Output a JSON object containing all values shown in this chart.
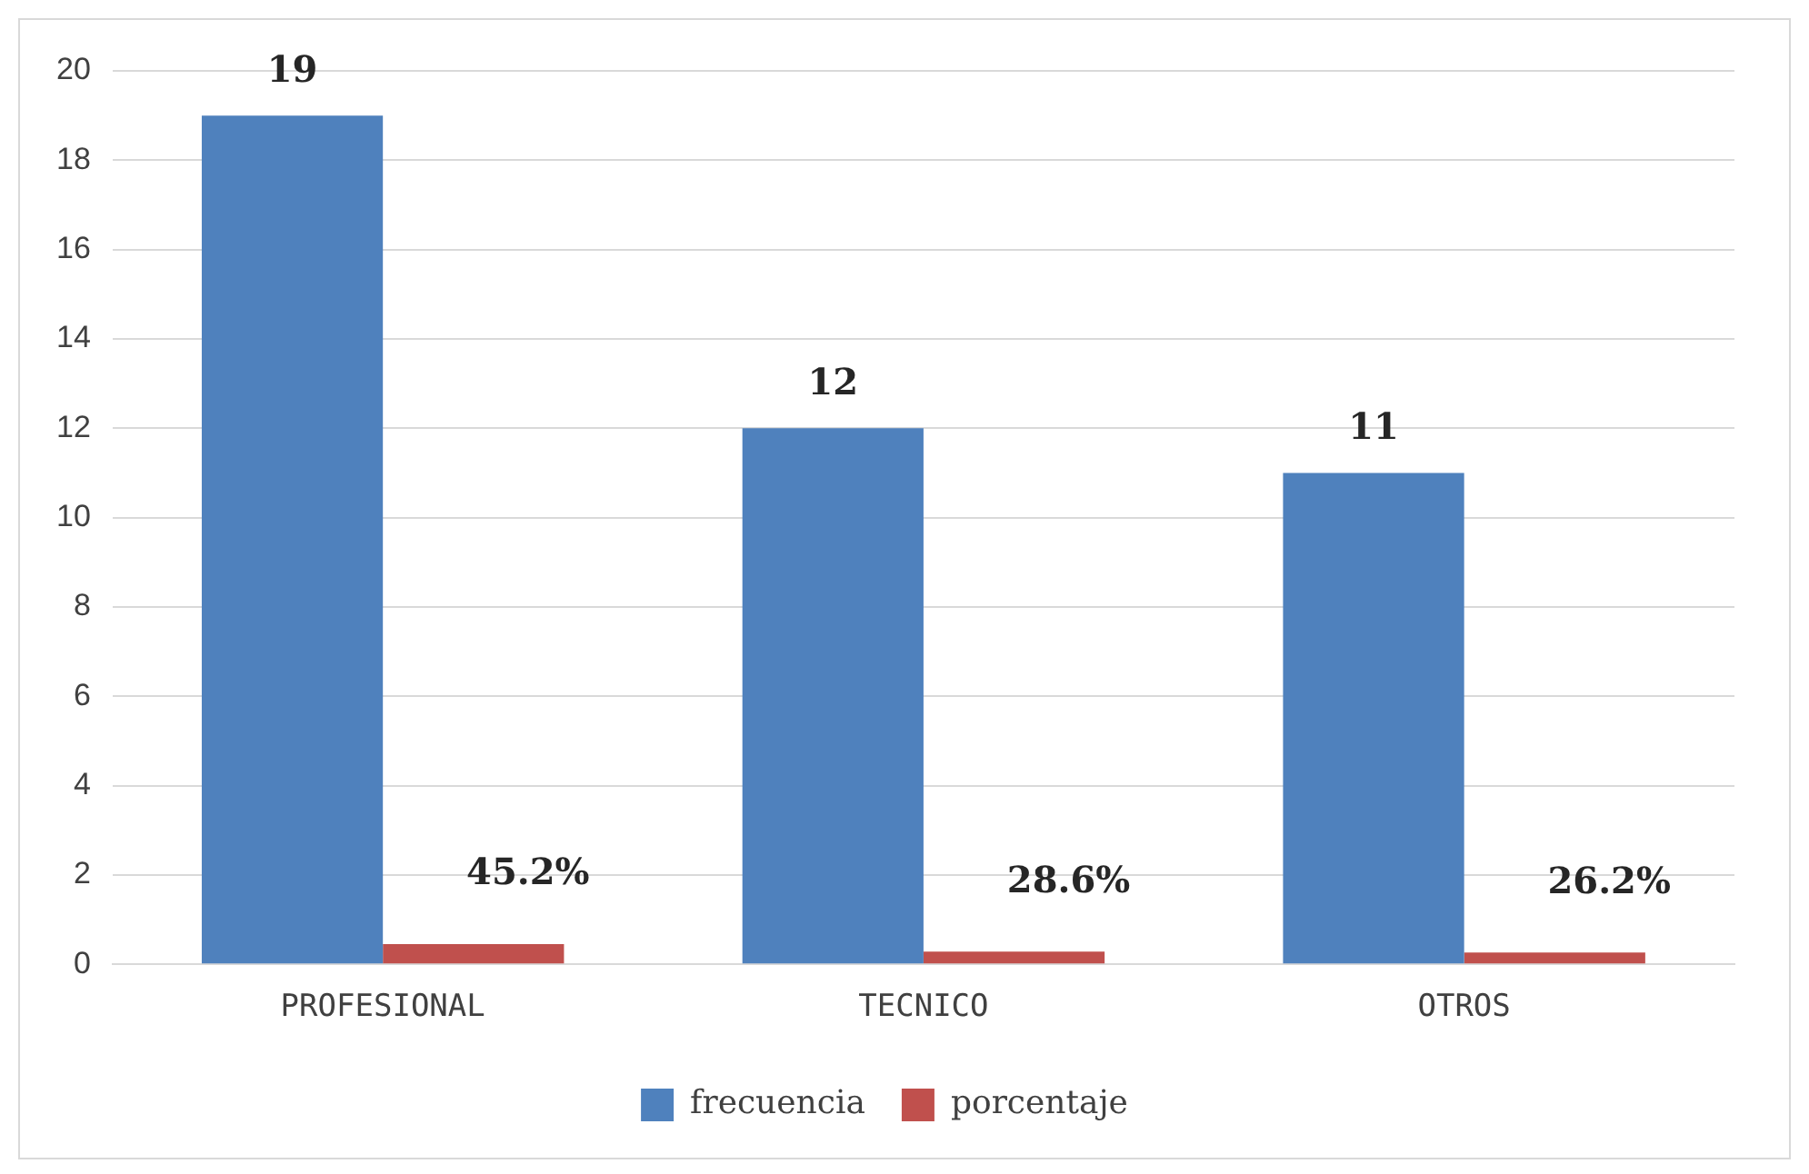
{
  "chart_data": {
    "type": "bar",
    "categories": [
      "PROFESIONAL",
      "TECNICO",
      "OTROS"
    ],
    "series": [
      {
        "name": "frecuencia",
        "color": "#4f81bd",
        "values": [
          19,
          12,
          11
        ],
        "value_labels": [
          "19",
          "12",
          "11"
        ]
      },
      {
        "name": "porcentaje",
        "color": "#c0504d",
        "values": [
          0.452,
          0.286,
          0.262
        ],
        "value_labels": [
          "45.2%",
          "28.6%",
          "26.2%"
        ]
      }
    ],
    "ylim": [
      0,
      20
    ],
    "yticks": [
      0,
      2,
      4,
      6,
      8,
      10,
      12,
      14,
      16,
      18,
      20
    ],
    "grid": "y",
    "legend": "bottom"
  }
}
